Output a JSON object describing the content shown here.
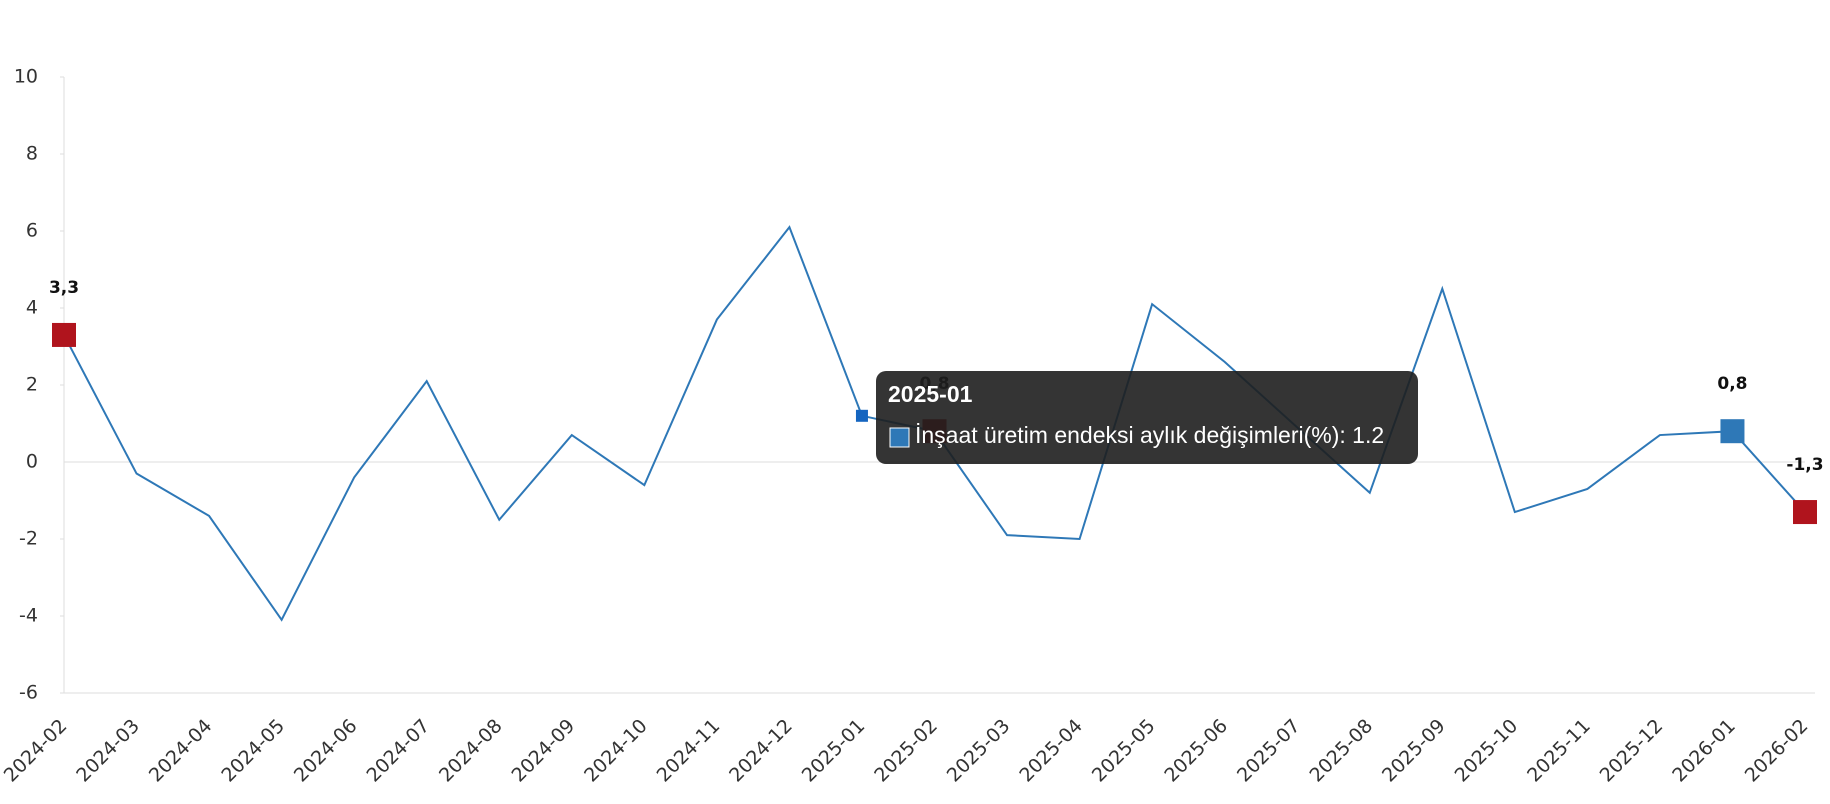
{
  "chart_data": {
    "type": "line",
    "categories": [
      "2024-02",
      "2024-03",
      "2024-04",
      "2024-05",
      "2024-06",
      "2024-07",
      "2024-08",
      "2024-09",
      "2024-10",
      "2024-11",
      "2024-12",
      "2025-01",
      "2025-02",
      "2025-03",
      "2025-04",
      "2025-05",
      "2025-06",
      "2025-07",
      "2025-08",
      "2025-09",
      "2025-10",
      "2025-11",
      "2025-12",
      "2026-01",
      "2026-02"
    ],
    "series": [
      {
        "name": "İnşaat üretim endeksi aylık değişimleri(%)",
        "color": "#2e78b7",
        "values": [
          3.3,
          -0.3,
          -1.4,
          -4.1,
          -0.4,
          2.1,
          -1.5,
          0.7,
          -0.6,
          3.7,
          6.1,
          1.2,
          0.8,
          -1.9,
          -2.0,
          4.1,
          2.6,
          0.9,
          -0.8,
          4.5,
          -1.3,
          -0.7,
          0.7,
          0.8,
          -1.3
        ],
        "value_labels": [
          "3,3",
          null,
          null,
          null,
          null,
          null,
          null,
          null,
          null,
          null,
          null,
          null,
          "0,8",
          null,
          null,
          null,
          null,
          null,
          null,
          null,
          null,
          null,
          null,
          "0,8",
          "-1,3"
        ],
        "marker_colors": [
          "#b0141d",
          null,
          null,
          null,
          null,
          null,
          null,
          null,
          null,
          null,
          null,
          null,
          "#b0141d",
          null,
          null,
          null,
          null,
          null,
          null,
          null,
          null,
          null,
          null,
          "#2e78b7",
          "#b0141d"
        ]
      }
    ],
    "ylim": [
      -6,
      10
    ],
    "yticks": [
      -6,
      -4,
      -2,
      0,
      2,
      4,
      6,
      8,
      10
    ],
    "tooltip": {
      "category_index": 11,
      "separator": ": "
    }
  }
}
